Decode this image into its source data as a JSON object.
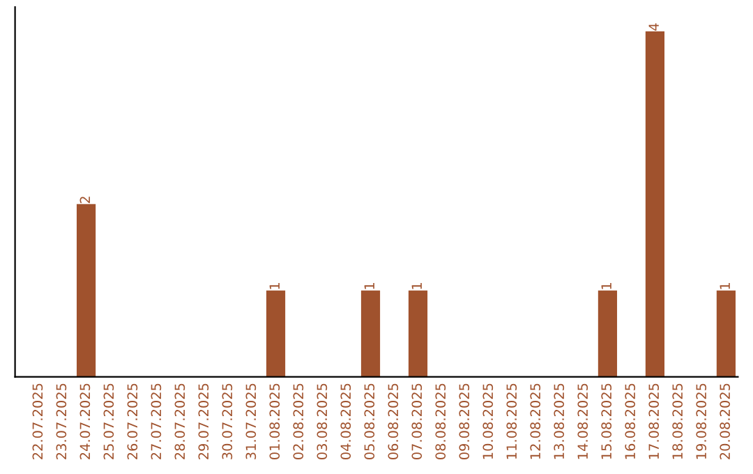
{
  "chart_data": {
    "type": "bar",
    "categories": [
      "22.07.2025",
      "23.07.2025",
      "24.07.2025",
      "25.07.2025",
      "26.07.2025",
      "27.07.2025",
      "28.07.2025",
      "29.07.2025",
      "30.07.2025",
      "31.07.2025",
      "01.08.2025",
      "02.08.2025",
      "03.08.2025",
      "04.08.2025",
      "05.08.2025",
      "06.08.2025",
      "07.08.2025",
      "08.08.2025",
      "09.08.2025",
      "10.08.2025",
      "11.08.2025",
      "12.08.2025",
      "13.08.2025",
      "14.08.2025",
      "15.08.2025",
      "16.08.2025",
      "17.08.2025",
      "18.08.2025",
      "19.08.2025",
      "20.08.2025"
    ],
    "values": [
      0,
      0,
      2,
      0,
      0,
      0,
      0,
      0,
      0,
      0,
      1,
      0,
      0,
      0,
      1,
      0,
      1,
      0,
      0,
      0,
      0,
      0,
      0,
      0,
      1,
      0,
      4,
      0,
      0,
      1
    ],
    "value_labels": [
      null,
      null,
      "2",
      null,
      null,
      null,
      null,
      null,
      null,
      null,
      "1",
      null,
      null,
      null,
      "1",
      null,
      "1",
      null,
      null,
      null,
      null,
      null,
      null,
      null,
      "1",
      null,
      "4",
      null,
      null,
      "1"
    ],
    "color": "#a0522d",
    "grid": false,
    "legend": false
  }
}
